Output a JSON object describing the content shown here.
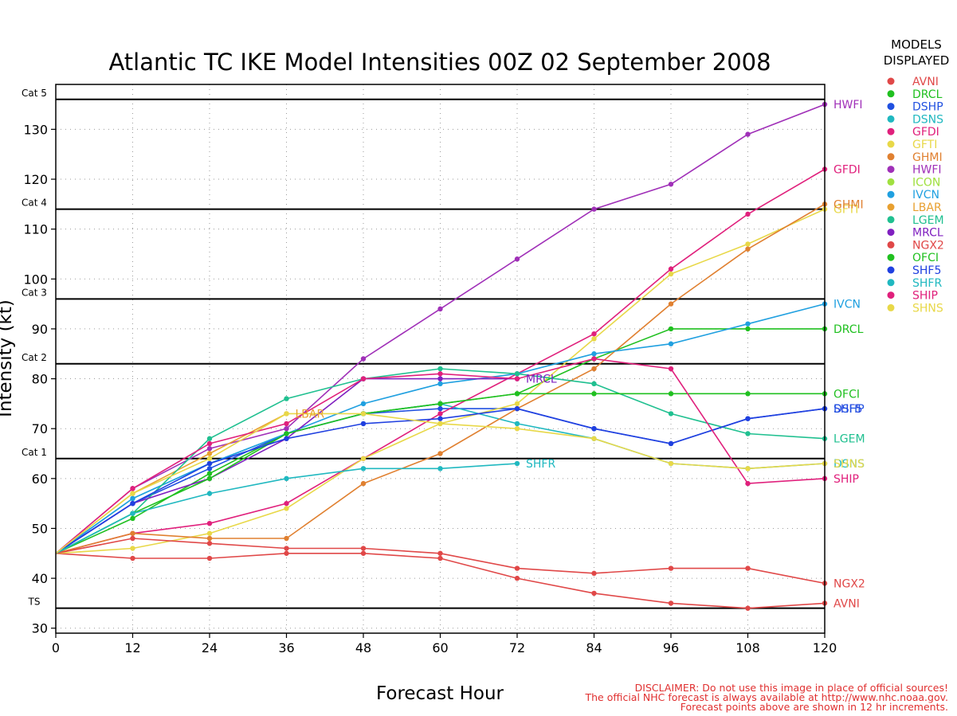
{
  "chart_data": {
    "type": "line",
    "title": "Atlantic TC IKE Model Intensities 00Z 02 September 2008",
    "xlabel": "Forecast Hour",
    "ylabel": "Intensity (kt)",
    "xlim": [
      0,
      120
    ],
    "ylim": [
      29,
      139
    ],
    "x_ticks": [
      0,
      12,
      24,
      36,
      48,
      60,
      72,
      84,
      96,
      108,
      120
    ],
    "y_ticks": [
      30,
      40,
      50,
      60,
      70,
      80,
      90,
      100,
      110,
      120,
      130
    ],
    "grid": true,
    "thresholds": [
      {
        "label": "TS",
        "value": 34
      },
      {
        "label": "Cat 1",
        "value": 64
      },
      {
        "label": "Cat 2",
        "value": 83
      },
      {
        "label": "Cat 3",
        "value": 96
      },
      {
        "label": "Cat 4",
        "value": 114
      },
      {
        "label": "Cat 5",
        "value": 136
      }
    ],
    "legend": {
      "title_line1": "MODELS",
      "title_line2": "DISPLAYED",
      "placement": "right"
    },
    "series": [
      {
        "name": "AVNI",
        "color": "#e04848",
        "end_label": "AVNI",
        "x": [
          0,
          12,
          24,
          36,
          48,
          60,
          72,
          84,
          96,
          108,
          120
        ],
        "y": [
          45,
          44,
          44,
          45,
          45,
          44,
          40,
          37,
          35,
          34,
          35
        ]
      },
      {
        "name": "DRCL",
        "color": "#20c020",
        "end_label": "DRCL",
        "x": [
          0,
          12,
          24,
          36,
          48,
          60,
          72,
          84,
          96,
          108,
          120
        ],
        "y": [
          45,
          52,
          61,
          69,
          73,
          75,
          77,
          84,
          90,
          90,
          90
        ]
      },
      {
        "name": "DSHP",
        "color": "#2050e0",
        "end_label": "",
        "x": [
          0,
          12,
          24,
          36,
          48,
          60,
          72,
          84,
          96,
          108,
          120
        ],
        "y": [
          45,
          55,
          62,
          69,
          73,
          74,
          74,
          70,
          67,
          72,
          74
        ]
      },
      {
        "name": "DSNS",
        "color": "#20b8c0",
        "end_label": "DSNS",
        "x": [
          0,
          12,
          24,
          36,
          48,
          60,
          72,
          84,
          96,
          108,
          120
        ],
        "y": [
          45,
          56,
          63,
          69,
          73,
          75,
          71,
          68,
          63,
          62,
          63
        ]
      },
      {
        "name": "GFDI",
        "color": "#e0207c",
        "end_label": "GFDI",
        "x": [
          0,
          12,
          24,
          36,
          48,
          60,
          72,
          84,
          96,
          108,
          120
        ],
        "y": [
          45,
          49,
          51,
          55,
          64,
          73,
          81,
          89,
          102,
          113,
          122
        ]
      },
      {
        "name": "GFTI",
        "color": "#e8d848",
        "end_label": "GFTI",
        "x": [
          0,
          12,
          24,
          36,
          48,
          60,
          72,
          84,
          96,
          108,
          120
        ],
        "y": [
          45,
          46,
          49,
          54,
          64,
          71,
          75,
          88,
          101,
          107,
          114
        ]
      },
      {
        "name": "GHMI",
        "color": "#e08030",
        "end_label": "GHMI",
        "x": [
          0,
          12,
          24,
          36,
          48,
          60,
          72,
          84,
          96,
          108,
          120
        ],
        "y": [
          45,
          49,
          48,
          48,
          59,
          65,
          74,
          82,
          95,
          106,
          115
        ]
      },
      {
        "name": "HWFI",
        "color": "#a030b8",
        "end_label": "HWFI",
        "x": [
          0,
          12,
          24,
          36,
          48,
          60,
          72,
          84,
          96,
          108,
          120
        ],
        "y": [
          45,
          58,
          66,
          70,
          84,
          94,
          104,
          114,
          119,
          129,
          135
        ]
      },
      {
        "name": "ICON",
        "color": "#a0e040",
        "end_label": "",
        "x": [],
        "y": []
      },
      {
        "name": "IVCN",
        "color": "#20a0e0",
        "end_label": "IVCN",
        "x": [
          0,
          12,
          24,
          36,
          48,
          60,
          72,
          84,
          96,
          108,
          120
        ],
        "y": [
          45,
          56,
          63,
          69,
          75,
          79,
          81,
          85,
          87,
          91,
          95
        ]
      },
      {
        "name": "LBAR",
        "color": "#e8a030",
        "end_label": "LBAR",
        "x": [
          0,
          12,
          24,
          36
        ],
        "y": [
          45,
          57,
          65,
          73
        ]
      },
      {
        "name": "LGEM",
        "color": "#20c090",
        "end_label": "LGEM",
        "x": [
          0,
          12,
          24,
          36,
          48,
          60,
          72,
          84,
          96,
          108,
          120
        ],
        "y": [
          45,
          53,
          68,
          76,
          80,
          82,
          81,
          79,
          73,
          69,
          68
        ]
      },
      {
        "name": "MRCL",
        "color": "#8020c0",
        "end_label": "MRCL",
        "x": [
          0,
          12,
          24,
          36,
          48,
          60,
          72
        ],
        "y": [
          45,
          55,
          60,
          68,
          80,
          80,
          80
        ]
      },
      {
        "name": "NGX2",
        "color": "#e04848",
        "end_label": "NGX2",
        "x": [
          0,
          12,
          24,
          36,
          48,
          60,
          72,
          84,
          96,
          108,
          120
        ],
        "y": [
          45,
          48,
          47,
          46,
          46,
          45,
          42,
          41,
          42,
          42,
          39
        ]
      },
      {
        "name": "OFCI",
        "color": "#20c020",
        "end_label": "OFCI",
        "x": [
          0,
          12,
          24,
          36,
          48,
          60,
          72,
          84,
          96,
          108,
          120
        ],
        "y": [
          45,
          53,
          60,
          69,
          73,
          75,
          77,
          77,
          77,
          77,
          77
        ]
      },
      {
        "name": "SHF5",
        "color": "#2040e0",
        "end_label": "SHF5",
        "x": [
          0,
          12,
          24,
          36,
          48,
          60,
          72,
          84,
          96,
          108,
          120
        ],
        "y": [
          45,
          55,
          63,
          68,
          71,
          72,
          74,
          70,
          67,
          72,
          74
        ]
      },
      {
        "name": "SHFR",
        "color": "#20b8c0",
        "end_label": "SHFR",
        "x": [
          0,
          12,
          24,
          36,
          48,
          60,
          72
        ],
        "y": [
          45,
          53,
          57,
          60,
          62,
          62,
          63
        ]
      },
      {
        "name": "SHIP",
        "color": "#e0207c",
        "end_label": "",
        "x": [
          0,
          12,
          24,
          36,
          48,
          60,
          72,
          84,
          96,
          108,
          120
        ],
        "y": [
          45,
          58,
          67,
          71,
          80,
          81,
          80,
          84,
          82,
          59,
          60
        ]
      },
      {
        "name": "SHNS",
        "color": "#e8d848",
        "end_label": "SHNS",
        "x": [
          0,
          12,
          24,
          36,
          48,
          60,
          72,
          84,
          96,
          108,
          120
        ],
        "y": [
          45,
          57,
          64,
          73,
          73,
          71,
          70,
          68,
          63,
          62,
          63
        ]
      }
    ],
    "end_label_overlap": "DSHP",
    "end_label_overlap2": "SHIP"
  },
  "disclaimer": {
    "line1": "DISCLAIMER: Do not use this image in place of official sources!",
    "line2": "The official NHC forecast is always available at http://www.nhc.noaa.gov.",
    "line3": "Forecast points above are shown in 12 hr increments."
  }
}
